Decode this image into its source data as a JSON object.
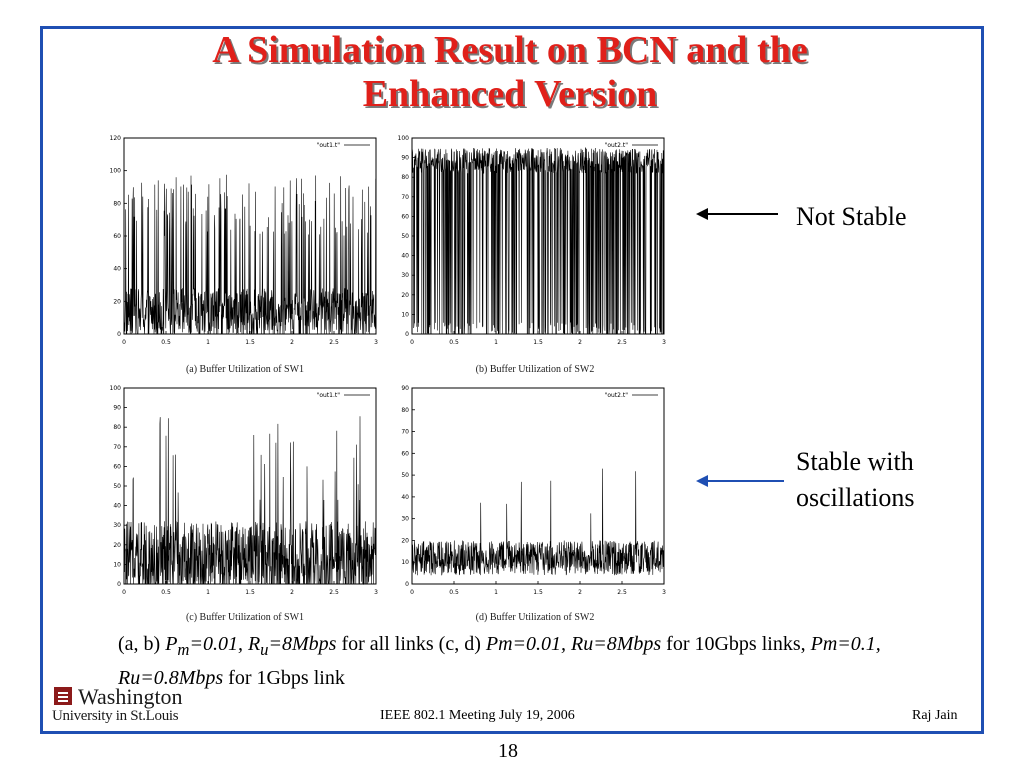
{
  "slide": {
    "title_line1": "A Simulation Result on BCN and the",
    "title_line2": "Enhanced Version",
    "annotation_top": "Not Stable",
    "annotation_bottom_line1": "Stable with",
    "annotation_bottom_line2": "oscillations",
    "description": {
      "p1": "(a, b) ",
      "p2": "P",
      "p2sub": "m",
      "p3": "=0.01, R",
      "p3sub": "u",
      "p4": "=8Mbps",
      "p5": " for all links (c, d) ",
      "p6": "Pm=0.01, Ru=8Mbps",
      "p7": " for 10Gbps links, ",
      "p8": "Pm=0.1, Ru=0.8Mbps",
      "p9": " for 1Gbps link"
    },
    "logo_top": "Washington",
    "logo_bottom": "University in St.Louis",
    "footer_center": "IEEE 802.1 Meeting  July 19, 2006",
    "footer_right": "Raj Jain",
    "page_number": "18",
    "colors": {
      "title": "#e0201a",
      "frame": "#1f4fb3",
      "arrow_bottom": "#1f4fb3",
      "arrow_top": "#000000"
    }
  },
  "chart_data": [
    {
      "type": "line",
      "caption": "(a)  Buffer Utilization of SW1",
      "legend": "\"out1.t\"",
      "xlim": [
        0,
        3
      ],
      "ylim": [
        0,
        120
      ],
      "xticks": [
        "0",
        "0.5",
        "1",
        "1.5",
        "2",
        "2.5",
        "3"
      ],
      "yticks": [
        "0",
        "20",
        "40",
        "60",
        "80",
        "100",
        "120"
      ],
      "pattern": {
        "base": 12,
        "noise": 16,
        "spikeProb": 0.12,
        "spikeMin": 60,
        "spikeMax": 98
      }
    },
    {
      "type": "line",
      "caption": "(b)  Buffer Utilization of SW2",
      "legend": "\"out2.t\"",
      "xlim": [
        0,
        3
      ],
      "ylim": [
        0,
        100
      ],
      "xticks": [
        "0",
        "0.5",
        "1",
        "1.5",
        "2",
        "2.5",
        "3"
      ],
      "yticks": [
        "0",
        "10",
        "20",
        "30",
        "40",
        "50",
        "60",
        "70",
        "80",
        "90",
        "100"
      ],
      "pattern": {
        "base": 0,
        "noise": 6,
        "spikeProb": 0.75,
        "spikeMin": 82,
        "spikeMax": 95
      }
    },
    {
      "type": "line",
      "caption": "(c)  Buffer Utilization of SW1",
      "legend": "\"out1.t\"",
      "xlim": [
        0,
        3
      ],
      "ylim": [
        0,
        100
      ],
      "xticks": [
        "0",
        "0.5",
        "1",
        "1.5",
        "2",
        "2.5",
        "3"
      ],
      "yticks": [
        "0",
        "10",
        "20",
        "30",
        "40",
        "50",
        "60",
        "70",
        "80",
        "90",
        "100"
      ],
      "pattern": {
        "base": 12,
        "noise": 20,
        "spikeProb": 0.03,
        "spikeMin": 40,
        "spikeMax": 92
      }
    },
    {
      "type": "line",
      "caption": "(d)  Buffer Utilization of SW2",
      "legend": "\"out2.t\"",
      "xlim": [
        0,
        3
      ],
      "ylim": [
        0,
        90
      ],
      "xticks": [
        "0",
        "0.5",
        "1",
        "1.5",
        "2",
        "2.5",
        "3"
      ],
      "yticks": [
        "0",
        "10",
        "20",
        "30",
        "40",
        "50",
        "60",
        "70",
        "80",
        "90"
      ],
      "pattern": {
        "base": 12,
        "noise": 8,
        "spikeProb": 0.012,
        "spikeMin": 25,
        "spikeMax": 56
      }
    }
  ]
}
